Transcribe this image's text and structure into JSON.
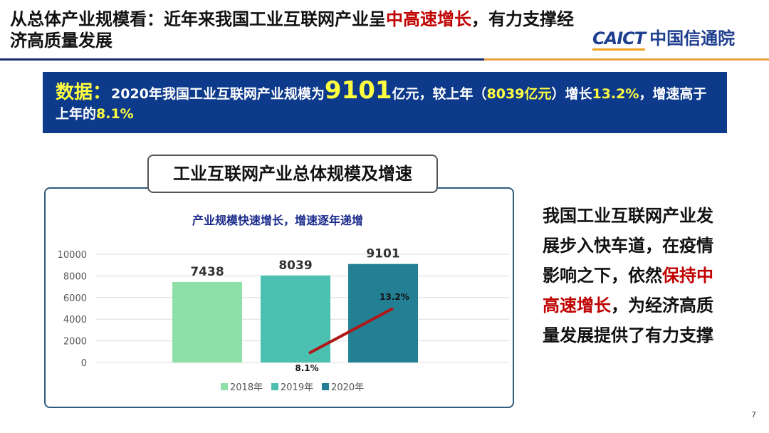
{
  "header": {
    "title_part1": "从总体产业规模看：近年来我国工业互联网产业呈",
    "title_highlight": "中高速增长",
    "title_part2": "，有力支撑经济高质量发展",
    "logo_en": "CAICT",
    "logo_cn": "中国信通院"
  },
  "banner": {
    "label": "数据：",
    "t1": "2020年我国工业互联网产业规模为",
    "v1": "9101",
    "t2": "亿元，较上年（",
    "v2": "8039亿元",
    "t3": "）增长",
    "v3": "13.2%",
    "t4": "，增速高于上年的",
    "v4": "8.1%"
  },
  "chart_box_title": "工业互联网产业总体规模及增速",
  "side": {
    "t1": "我国工业互联网产业发展步入快车道，在疫情影响之下，依然",
    "highlight": "保持中高速增长",
    "t2": "，为经济高质量发展提供了有力支撑"
  },
  "page_number": "7",
  "colors": {
    "bar_2018": "#8fe0a8",
    "bar_2019": "#4cc0b0",
    "bar_2020": "#237f94",
    "growth_line": "#b01818",
    "banner_bg": "#0d3a8a",
    "highlight": "#c00000"
  },
  "chart_data": {
    "type": "bar",
    "title": "产业规模快速增长，增速逐年递增",
    "categories": [
      "2018年",
      "2019年",
      "2020年"
    ],
    "values": [
      7438,
      8039,
      9101
    ],
    "data_labels": [
      "7438",
      "8039",
      "9101"
    ],
    "ylim": [
      0,
      10000
    ],
    "yticks": [
      "0",
      "2000",
      "4000",
      "6000",
      "8000",
      "10000"
    ],
    "grid": true,
    "legend": "bottom",
    "growth_line": {
      "type": "line",
      "categories": [
        "2019年",
        "2020年"
      ],
      "values": [
        8.1,
        13.2
      ],
      "labels": [
        "8.1%",
        "13.2%"
      ]
    }
  }
}
